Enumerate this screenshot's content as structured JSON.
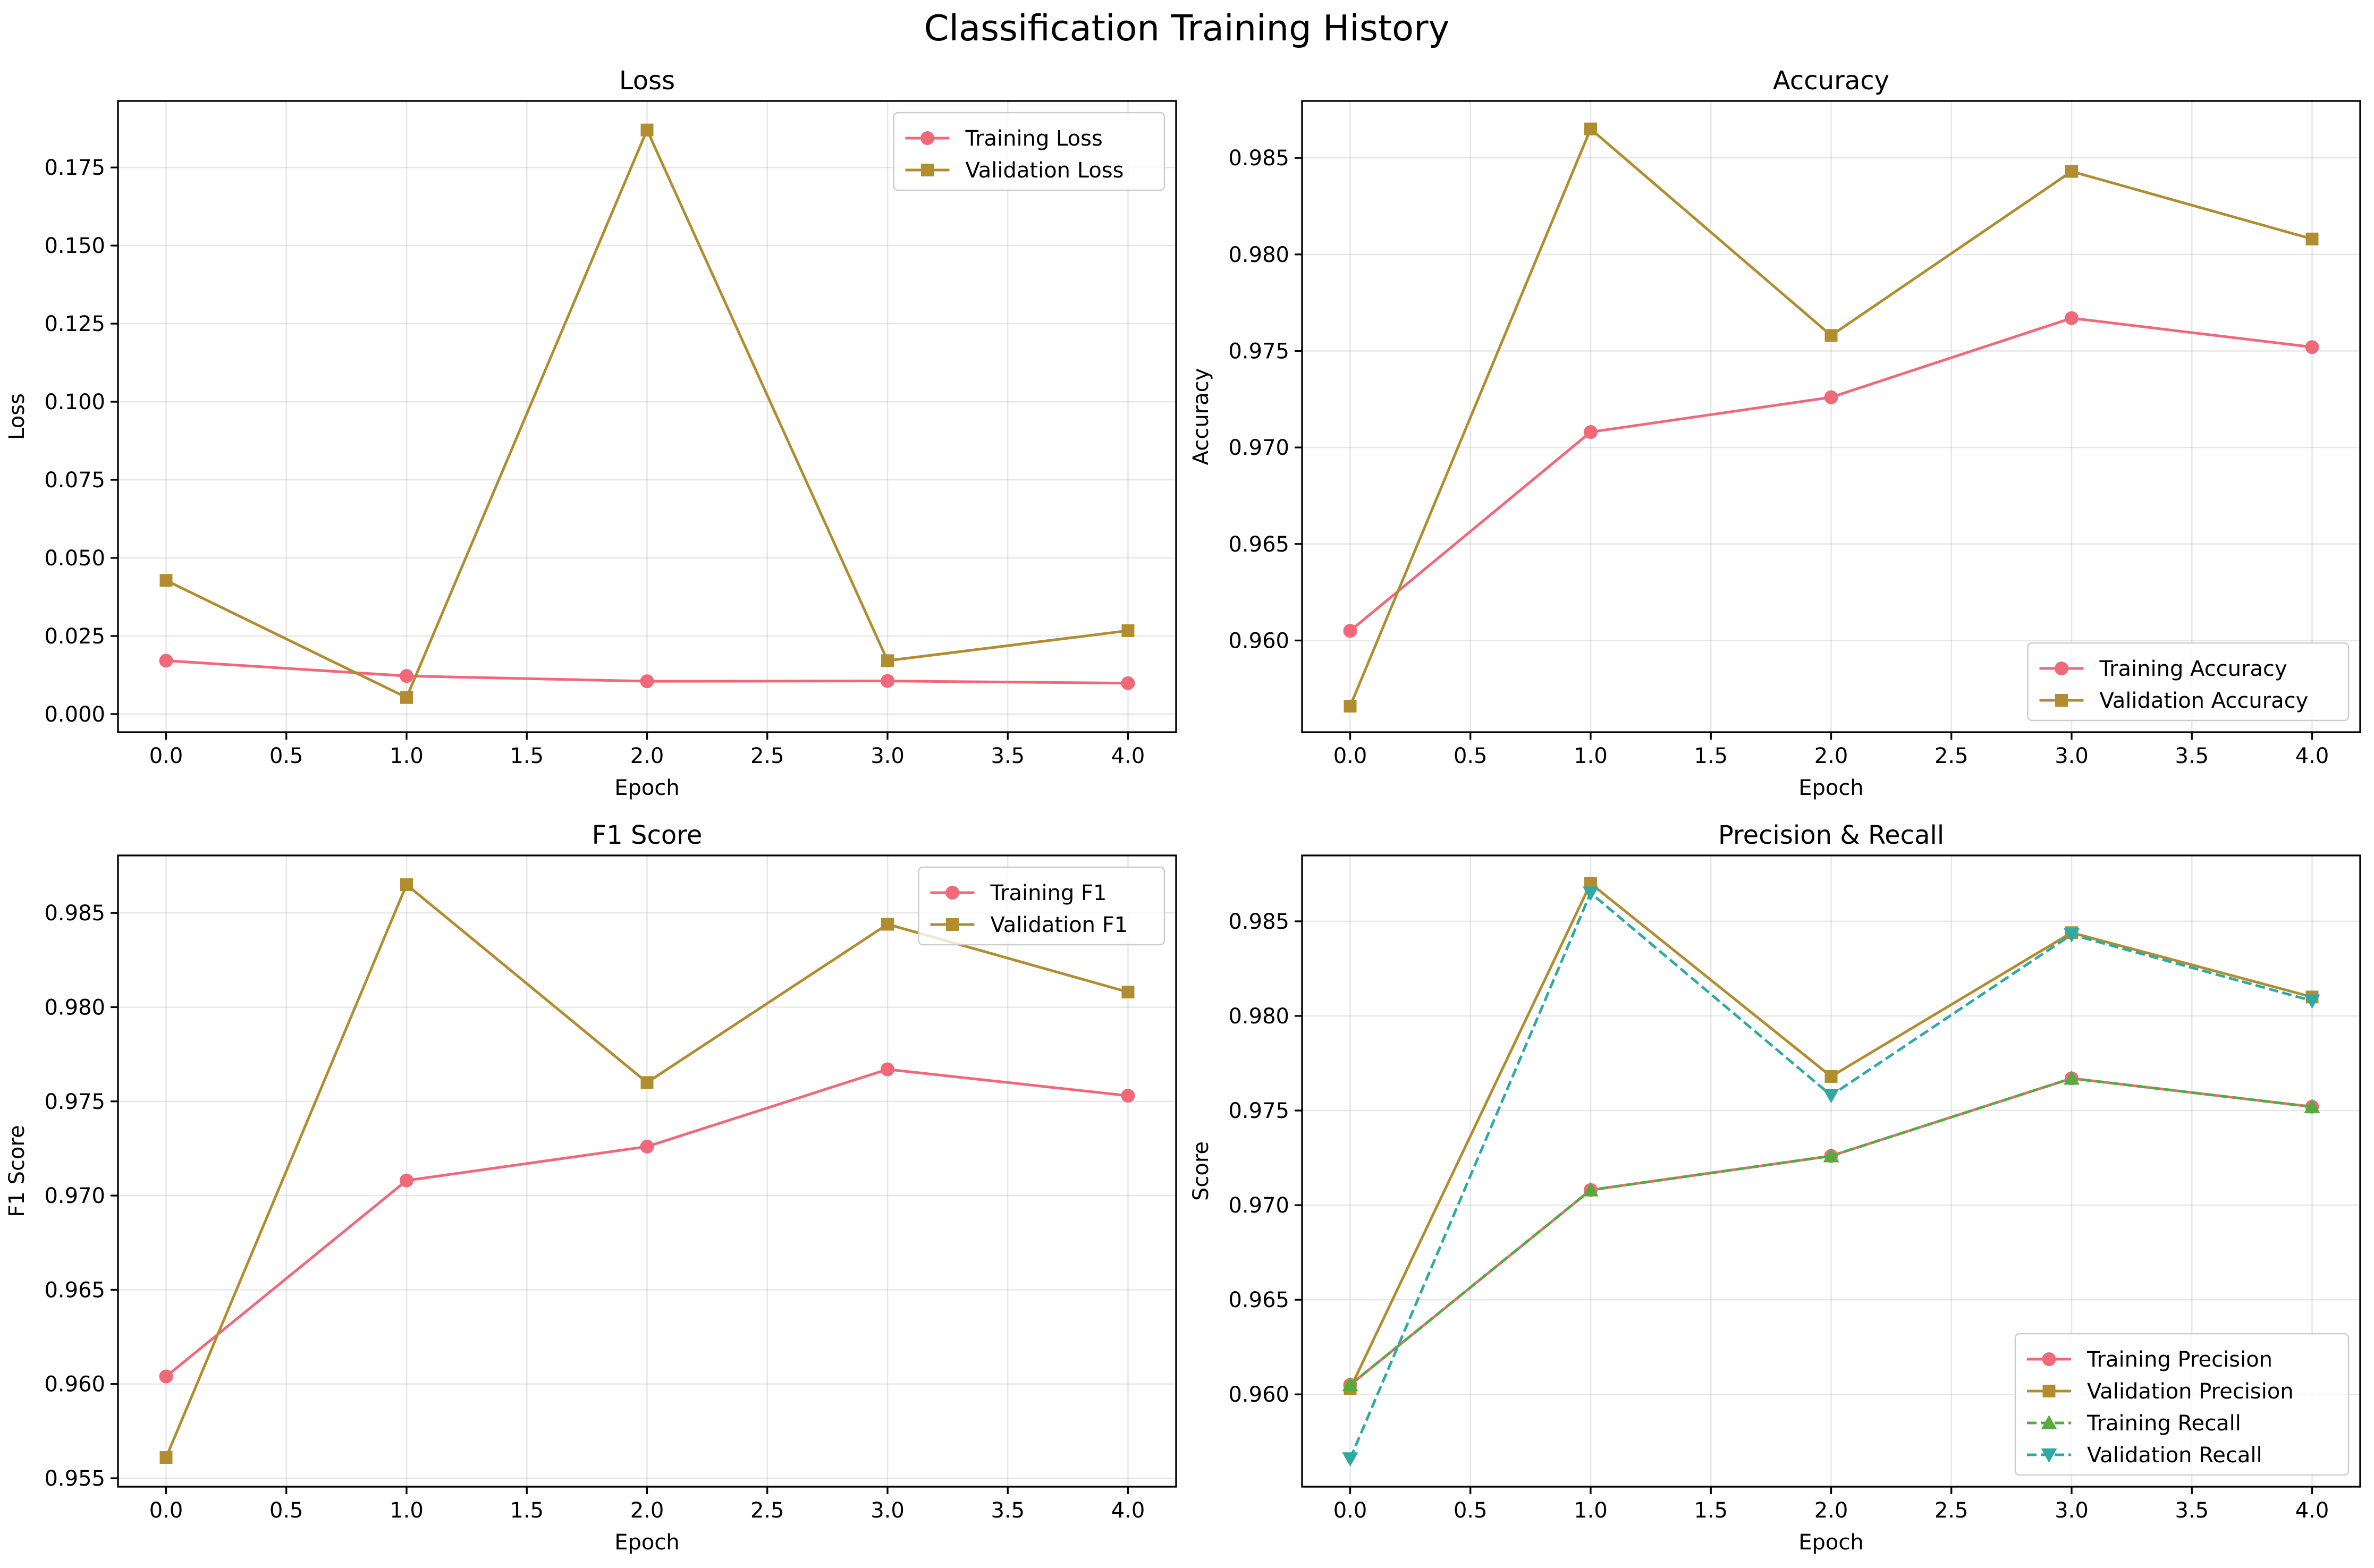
{
  "figure": {
    "title": "Classification Training History"
  },
  "colors": {
    "training": "#f0687a",
    "validation": "#b18d2f",
    "training_recall": "#56ab3f",
    "validation_recall": "#2eaaa4"
  },
  "chart_data": [
    {
      "type": "line",
      "title": "Loss",
      "xlabel": "Epoch",
      "ylabel": "Loss",
      "x": [
        0,
        1,
        2,
        3,
        4
      ],
      "xlim": [
        -0.2,
        4.2
      ],
      "ylim": [
        -0.0058,
        0.1963
      ],
      "xticks": [
        0.0,
        0.5,
        1.0,
        1.5,
        2.0,
        2.5,
        3.0,
        3.5,
        4.0
      ],
      "xtick_labels": [
        "0.0",
        "0.5",
        "1.0",
        "1.5",
        "2.0",
        "2.5",
        "3.0",
        "3.5",
        "4.0"
      ],
      "yticks": [
        0.0,
        0.025,
        0.05,
        0.075,
        0.1,
        0.125,
        0.15,
        0.175
      ],
      "ytick_labels": [
        "0.000",
        "0.025",
        "0.050",
        "0.075",
        "0.100",
        "0.125",
        "0.150",
        "0.175"
      ],
      "grid": true,
      "legend_position": "upper right",
      "series": [
        {
          "name": "Training Loss",
          "values": [
            0.0171,
            0.0122,
            0.0105,
            0.0106,
            0.0099
          ],
          "color_key": "training",
          "marker": "circle",
          "dashed": false
        },
        {
          "name": "Validation Loss",
          "values": [
            0.0428,
            0.0053,
            0.187,
            0.0171,
            0.0267
          ],
          "color_key": "validation",
          "marker": "square",
          "dashed": false
        }
      ]
    },
    {
      "type": "line",
      "title": "Accuracy",
      "xlabel": "Epoch",
      "ylabel": "Accuracy",
      "x": [
        0,
        1,
        2,
        3,
        4
      ],
      "xlim": [
        -0.2,
        4.2
      ],
      "ylim": [
        0.95525,
        0.98795
      ],
      "xticks": [
        0.0,
        0.5,
        1.0,
        1.5,
        2.0,
        2.5,
        3.0,
        3.5,
        4.0
      ],
      "xtick_labels": [
        "0.0",
        "0.5",
        "1.0",
        "1.5",
        "2.0",
        "2.5",
        "3.0",
        "3.5",
        "4.0"
      ],
      "yticks": [
        0.96,
        0.965,
        0.97,
        0.975,
        0.98,
        0.985
      ],
      "ytick_labels": [
        "0.960",
        "0.965",
        "0.970",
        "0.975",
        "0.980",
        "0.985"
      ],
      "grid": true,
      "legend_position": "lower right",
      "series": [
        {
          "name": "Training Accuracy",
          "values": [
            0.9605,
            0.9708,
            0.9726,
            0.9767,
            0.9752
          ],
          "color_key": "training",
          "marker": "circle",
          "dashed": false
        },
        {
          "name": "Validation Accuracy",
          "values": [
            0.9566,
            0.9865,
            0.9758,
            0.9843,
            0.9808
          ],
          "color_key": "validation",
          "marker": "square",
          "dashed": false
        }
      ]
    },
    {
      "type": "line",
      "title": "F1 Score",
      "xlabel": "Epoch",
      "ylabel": "F1 Score",
      "x": [
        0,
        1,
        2,
        3,
        4
      ],
      "xlim": [
        -0.2,
        4.2
      ],
      "ylim": [
        0.95455,
        0.98805
      ],
      "xticks": [
        0.0,
        0.5,
        1.0,
        1.5,
        2.0,
        2.5,
        3.0,
        3.5,
        4.0
      ],
      "xtick_labels": [
        "0.0",
        "0.5",
        "1.0",
        "1.5",
        "2.0",
        "2.5",
        "3.0",
        "3.5",
        "4.0"
      ],
      "yticks": [
        0.955,
        0.96,
        0.965,
        0.97,
        0.975,
        0.98,
        0.985
      ],
      "ytick_labels": [
        "0.955",
        "0.960",
        "0.965",
        "0.970",
        "0.975",
        "0.980",
        "0.985"
      ],
      "grid": true,
      "legend_position": "upper right",
      "series": [
        {
          "name": "Training F1",
          "values": [
            0.9604,
            0.9708,
            0.9726,
            0.9767,
            0.9753
          ],
          "color_key": "training",
          "marker": "circle",
          "dashed": false
        },
        {
          "name": "Validation F1",
          "values": [
            0.9561,
            0.9865,
            0.976,
            0.9844,
            0.9808
          ],
          "color_key": "validation",
          "marker": "square",
          "dashed": false
        }
      ]
    },
    {
      "type": "line",
      "title": "Precision & Recall",
      "xlabel": "Epoch",
      "ylabel": "Score",
      "x": [
        0,
        1,
        2,
        3,
        4
      ],
      "xlim": [
        -0.2,
        4.2
      ],
      "ylim": [
        0.95512,
        0.98848
      ],
      "xticks": [
        0.0,
        0.5,
        1.0,
        1.5,
        2.0,
        2.5,
        3.0,
        3.5,
        4.0
      ],
      "xtick_labels": [
        "0.0",
        "0.5",
        "1.0",
        "1.5",
        "2.0",
        "2.5",
        "3.0",
        "3.5",
        "4.0"
      ],
      "yticks": [
        0.96,
        0.965,
        0.97,
        0.975,
        0.98,
        0.985
      ],
      "ytick_labels": [
        "0.960",
        "0.965",
        "0.970",
        "0.975",
        "0.980",
        "0.985"
      ],
      "grid": true,
      "legend_position": "lower right",
      "series": [
        {
          "name": "Training Precision",
          "values": [
            0.9605,
            0.9708,
            0.9726,
            0.9767,
            0.9752
          ],
          "color_key": "training",
          "marker": "circle",
          "dashed": false
        },
        {
          "name": "Validation Precision",
          "values": [
            0.9603,
            0.987,
            0.9768,
            0.9844,
            0.981
          ],
          "color_key": "validation",
          "marker": "square",
          "dashed": false
        },
        {
          "name": "Training Recall",
          "values": [
            0.9605,
            0.9708,
            0.9726,
            0.9767,
            0.9752
          ],
          "color_key": "training_recall",
          "marker": "triangle-up",
          "dashed": true
        },
        {
          "name": "Validation Recall",
          "values": [
            0.9566,
            0.9865,
            0.9758,
            0.9843,
            0.9808
          ],
          "color_key": "validation_recall",
          "marker": "triangle-down",
          "dashed": true
        }
      ]
    }
  ]
}
